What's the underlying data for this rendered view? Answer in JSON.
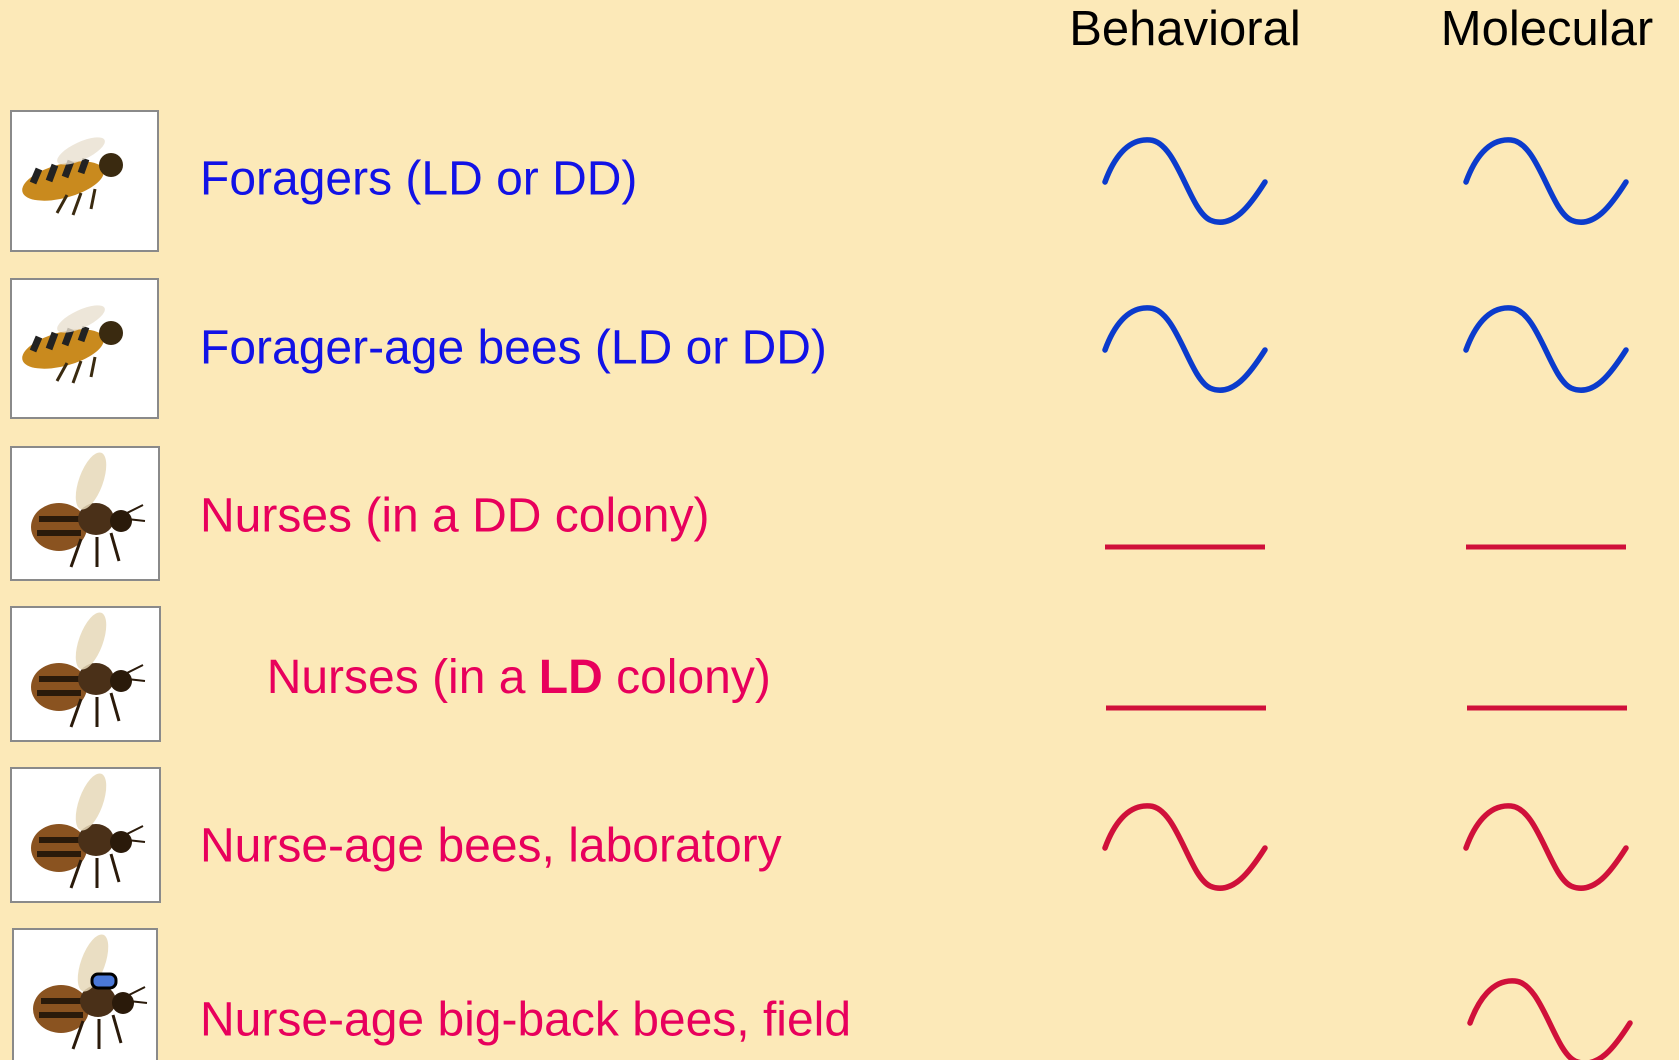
{
  "header": {
    "columns": [
      "Behavioral",
      "Molecular"
    ]
  },
  "rows": [
    {
      "label": "Foragers (LD or DD)"
    },
    {
      "label": "Forager-age bees (LD or DD)"
    },
    {
      "label": "Nurses (in a DD colony)"
    },
    {
      "label_parts": [
        "Nurses (in a ",
        "LD",
        " colony)"
      ]
    },
    {
      "label": "Nurse-age bees, laboratory"
    },
    {
      "label": "Nurse-age big-back bees, field"
    }
  ]
}
